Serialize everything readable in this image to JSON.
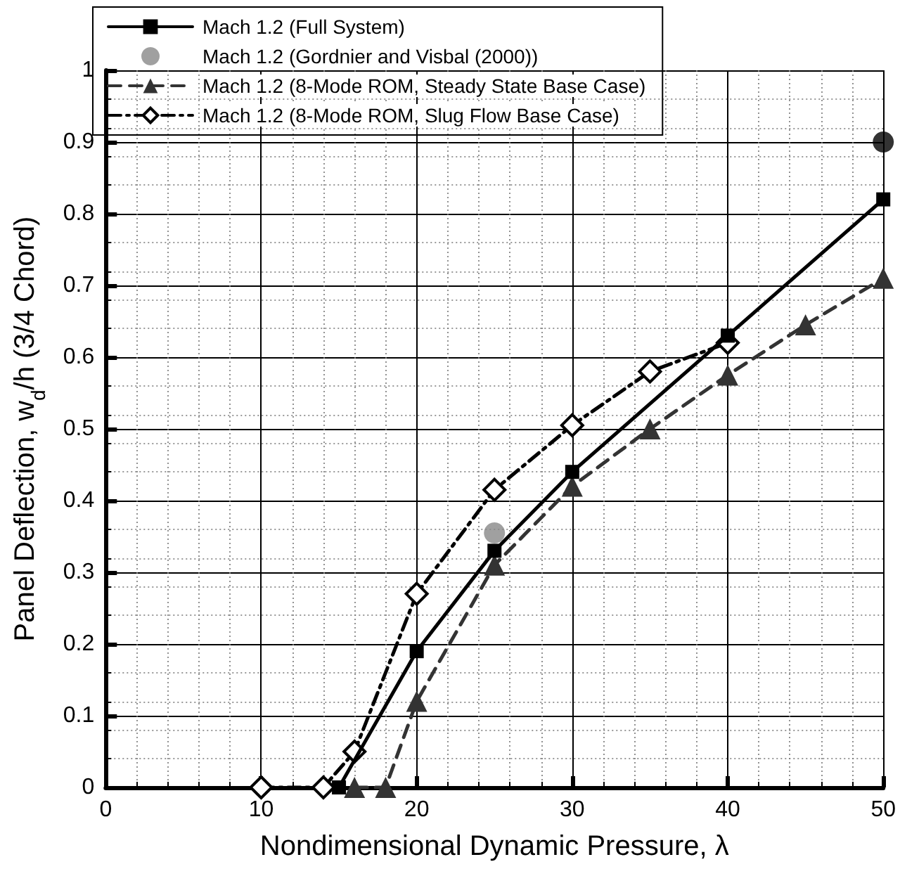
{
  "chart_data": {
    "type": "line",
    "xlabel": "Nondimensional Dynamic Pressure, λ",
    "ylabel": "Panel Deflection, w$_{d}$/h (3/4 Chord)",
    "xlim": [
      0,
      50
    ],
    "xticks": [
      0,
      10,
      20,
      30,
      40,
      50
    ],
    "ylim": [
      0,
      1
    ],
    "yticks": [
      0,
      0.1,
      0.2,
      0.3,
      0.4,
      0.5,
      0.6,
      0.7,
      0.8,
      0.9,
      1
    ],
    "grid": true,
    "legend": "top left",
    "series": [
      {
        "name": "Mach 1.2 (Full System)",
        "color": "#000000",
        "marker": "square",
        "line_style": "solid",
        "x": [
          15,
          20,
          25,
          30,
          40,
          50
        ],
        "values": [
          0,
          0.19,
          0.33,
          0.44,
          0.63,
          0.82
        ]
      },
      {
        "name": "Mach 1.2 (Gordnier and Visbal (2000))",
        "type": "scatter",
        "color": "#888888",
        "colors": [
          "#888888",
          "#000000"
        ],
        "marker": "circle",
        "x": [
          25,
          50
        ],
        "values": [
          0.355,
          0.9
        ]
      },
      {
        "name": "Mach 1.2 (8-Mode ROM, Steady State Base Case)",
        "color": "#333333",
        "marker": "triangle",
        "line_style": "dashed",
        "x": [
          16,
          18,
          20,
          25,
          30,
          35,
          40,
          45,
          50
        ],
        "values": [
          0,
          0,
          0.12,
          0.31,
          0.42,
          0.5,
          0.575,
          0.645,
          0.71
        ]
      },
      {
        "name": "Mach 1.2 (8-Mode ROM, Slug Flow Base Case)",
        "color": "#000000",
        "marker": "diamond",
        "line_style": "dashdot",
        "x": [
          10,
          14,
          16,
          20,
          25,
          30,
          35,
          40
        ],
        "values": [
          0,
          0,
          0.05,
          0.27,
          0.415,
          0.505,
          0.58,
          0.62
        ]
      }
    ]
  }
}
